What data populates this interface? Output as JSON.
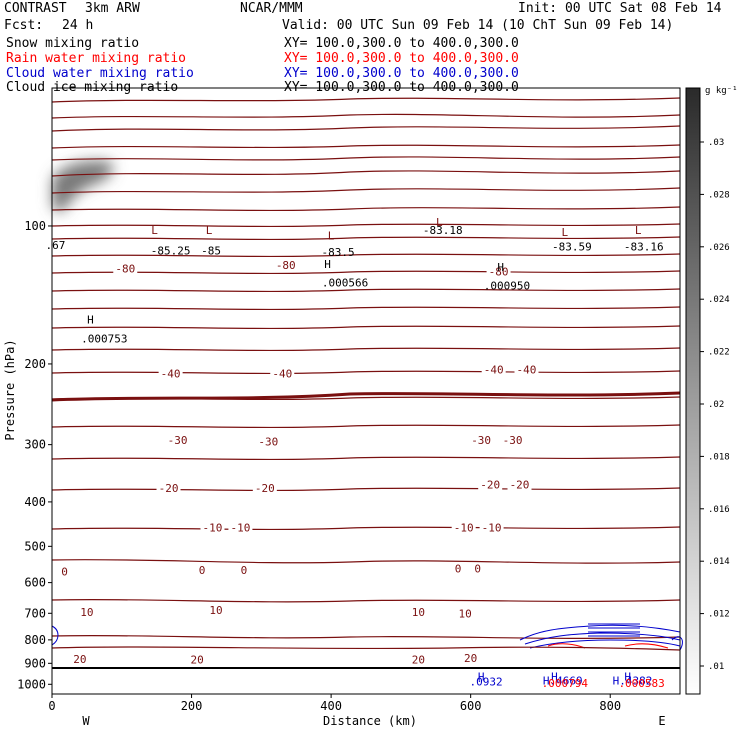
{
  "header": {
    "case": "CONTRAST",
    "model": "3km ARW",
    "org": "NCAR/MMM",
    "init": "Init: 00 UTC Sat 08 Feb 14",
    "fcst_label": "Fcst:",
    "fcst_value": "24 h",
    "valid": "Valid: 00 UTC Sun 09 Feb 14 (10 ChT Sun 09 Feb 14)"
  },
  "fields": [
    {
      "name": "Snow mixing ratio",
      "xy": "XY= 100.0,300.0 to 400.0,300.0",
      "color": "#000000"
    },
    {
      "name": "Rain water mixing ratio",
      "xy": "XY= 100.0,300.0 to 400.0,300.0",
      "color": "#ff0000"
    },
    {
      "name": "Cloud water mixing ratio",
      "xy": "XY= 100.0,300.0 to 400.0,300.0",
      "color": "#0000cc"
    },
    {
      "name": "Cloud ice mixing ratio",
      "xy": "XY= 100.0,300.0 to 400.0,300.0",
      "color": "#000000"
    }
  ],
  "colors": {
    "temperature": "#7a1010",
    "cloud_water": "#0000cc",
    "rain_water": "#ff0000",
    "snow": "#000000"
  },
  "chart_data": {
    "type": "contour",
    "xlabel": "Distance (km)",
    "ylabel": "Pressure (hPa)",
    "xlim": [
      0,
      900
    ],
    "ylim": [
      1050,
      50
    ],
    "y_scale": "log",
    "x_ticks": [
      "0",
      "200",
      "400",
      "600",
      "800"
    ],
    "y_ticks": [
      "100",
      "200",
      "300",
      "400",
      "500",
      "600",
      "700",
      "800",
      "900",
      "1000"
    ],
    "endpoint_labels": {
      "left": "W",
      "right": "E"
    },
    "colorbar": {
      "unit": "g kg⁻¹",
      "ticks": [
        ".03",
        ".028",
        ".026",
        ".024",
        ".022",
        ".02",
        ".018",
        ".016",
        ".014",
        ".012",
        ".01"
      ]
    },
    "temperature_contour_labels": [
      {
        "x": 105,
        "p": 125,
        "text": "-80"
      },
      {
        "x": 335,
        "p": 123,
        "text": "-80"
      },
      {
        "x": 640,
        "p": 127,
        "text": "-80"
      },
      {
        "x": 170,
        "p": 212,
        "text": "-40"
      },
      {
        "x": 330,
        "p": 212,
        "text": "-40"
      },
      {
        "x": 633,
        "p": 208,
        "text": "-40"
      },
      {
        "x": 680,
        "p": 208,
        "text": "-40"
      },
      {
        "x": 180,
        "p": 296,
        "text": "-30"
      },
      {
        "x": 310,
        "p": 298,
        "text": "-30"
      },
      {
        "x": 615,
        "p": 296,
        "text": "-30"
      },
      {
        "x": 660,
        "p": 296,
        "text": "-30"
      },
      {
        "x": 167,
        "p": 377,
        "text": "-20"
      },
      {
        "x": 305,
        "p": 377,
        "text": "-20"
      },
      {
        "x": 628,
        "p": 370,
        "text": "-20"
      },
      {
        "x": 670,
        "p": 370,
        "text": "-20"
      },
      {
        "x": 230,
        "p": 460,
        "text": "-10"
      },
      {
        "x": 270,
        "p": 460,
        "text": "-10"
      },
      {
        "x": 590,
        "p": 460,
        "text": "-10"
      },
      {
        "x": 630,
        "p": 460,
        "text": "-10"
      },
      {
        "x": 18,
        "p": 573,
        "text": "0"
      },
      {
        "x": 215,
        "p": 569,
        "text": "0"
      },
      {
        "x": 275,
        "p": 569,
        "text": "0"
      },
      {
        "x": 582,
        "p": 565,
        "text": "0"
      },
      {
        "x": 610,
        "p": 565,
        "text": "0"
      },
      {
        "x": 50,
        "p": 703,
        "text": "10"
      },
      {
        "x": 235,
        "p": 695,
        "text": "10"
      },
      {
        "x": 525,
        "p": 703,
        "text": "10"
      },
      {
        "x": 592,
        "p": 708,
        "text": "10"
      },
      {
        "x": 40,
        "p": 889,
        "text": "20"
      },
      {
        "x": 208,
        "p": 892,
        "text": "20"
      },
      {
        "x": 525,
        "p": 892,
        "text": "20"
      },
      {
        "x": 600,
        "p": 886,
        "text": "20"
      }
    ],
    "extrema_labels": [
      {
        "x": 5,
        "p": 110,
        "text": ".67",
        "color": "#000000"
      },
      {
        "x": 147,
        "p": 102,
        "text": "L",
        "color": "#7a1010"
      },
      {
        "x": 170,
        "p": 113,
        "text": "-85.25",
        "color": "#000000"
      },
      {
        "x": 225,
        "p": 102,
        "text": "L",
        "color": "#7a1010"
      },
      {
        "x": 228,
        "p": 113,
        "text": "-85",
        "color": "#000000"
      },
      {
        "x": 400,
        "p": 105,
        "text": "L",
        "color": "#7a1010"
      },
      {
        "x": 410,
        "p": 114,
        "text": "-83.5",
        "color": "#000000"
      },
      {
        "x": 555,
        "p": 98,
        "text": "L",
        "color": "#7a1010"
      },
      {
        "x": 560,
        "p": 102,
        "text": "-83.18",
        "color": "#000000"
      },
      {
        "x": 643,
        "p": 123,
        "text": "H",
        "color": "#000000"
      },
      {
        "x": 652,
        "p": 135,
        "text": ".000950",
        "color": "#000000"
      },
      {
        "x": 395,
        "p": 121,
        "text": "H",
        "color": "#000000"
      },
      {
        "x": 420,
        "p": 133,
        "text": ".000566",
        "color": "#000000"
      },
      {
        "x": 735,
        "p": 103,
        "text": "L",
        "color": "#7a1010"
      },
      {
        "x": 745,
        "p": 111,
        "text": "-83.59",
        "color": "#000000"
      },
      {
        "x": 840,
        "p": 102,
        "text": "L",
        "color": "#7a1010"
      },
      {
        "x": 848,
        "p": 111,
        "text": "-83.16",
        "color": "#000000"
      },
      {
        "x": 55,
        "p": 160,
        "text": "H",
        "color": "#000000"
      },
      {
        "x": 75,
        "p": 176,
        "text": ".000753",
        "color": "#000000"
      },
      {
        "x": 615,
        "p": 962,
        "text": "H",
        "color": "#0000cc"
      },
      {
        "x": 622,
        "p": 985,
        "text": ".0932",
        "color": "#0000cc"
      },
      {
        "x": 720,
        "p": 962,
        "text": "H",
        "color": "#0000cc"
      },
      {
        "x": 732,
        "p": 980,
        "text": "H.4669",
        "color": "#0000cc"
      },
      {
        "x": 735,
        "p": 993,
        "text": ".000794",
        "color": "#ff0000"
      },
      {
        "x": 825,
        "p": 962,
        "text": "H",
        "color": "#0000cc"
      },
      {
        "x": 832,
        "p": 980,
        "text": "H.4382",
        "color": "#0000cc"
      },
      {
        "x": 845,
        "p": 993,
        "text": ".000583",
        "color": "#ff0000"
      }
    ]
  }
}
